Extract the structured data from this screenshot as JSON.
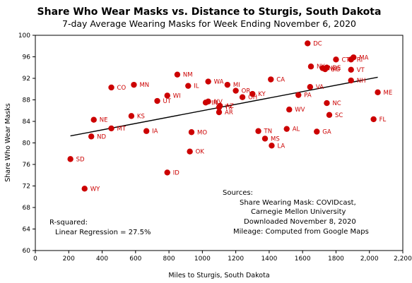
{
  "chart_data": {
    "type": "scatter",
    "title": "Share Who Wear Masks vs. Distance to Sturgis, South Dakota",
    "subtitle": "7-day Average Wearing Masks for Week Ending November 6, 2020",
    "xlabel": "Miles to Sturgis, South Dakota",
    "ylabel": "Share Who Wear Masks",
    "xlim": [
      0,
      2200
    ],
    "ylim": [
      60,
      100
    ],
    "x_ticks": [
      "0",
      "200",
      "400",
      "600",
      "800",
      "1000",
      "1200",
      "1400",
      "1600",
      "1800",
      "2,000",
      "2,200"
    ],
    "y_ticks": [
      "60",
      "64",
      "68",
      "72",
      "76",
      "80",
      "84",
      "88",
      "92",
      "96",
      "100"
    ],
    "grid": false,
    "point_color": "#cc0000",
    "trend_color": "#000000",
    "trendline": {
      "x": [
        210,
        2050
      ],
      "y": [
        81.3,
        92.2
      ]
    },
    "points": [
      {
        "label": "SD",
        "x": 210,
        "y": 77.0
      },
      {
        "label": "WY",
        "x": 295,
        "y": 71.5
      },
      {
        "label": "NE",
        "x": 350,
        "y": 84.3
      },
      {
        "label": "ND",
        "x": 335,
        "y": 81.2
      },
      {
        "label": "CO",
        "x": 455,
        "y": 90.3
      },
      {
        "label": "MT",
        "x": 455,
        "y": 82.7
      },
      {
        "label": "MN",
        "x": 590,
        "y": 90.8
      },
      {
        "label": "KS",
        "x": 575,
        "y": 85.0
      },
      {
        "label": "IA",
        "x": 665,
        "y": 82.2
      },
      {
        "label": "UT",
        "x": 730,
        "y": 87.8
      },
      {
        "label": "NM",
        "x": 850,
        "y": 92.7
      },
      {
        "label": "WI",
        "x": 790,
        "y": 88.8
      },
      {
        "label": "IL",
        "x": 915,
        "y": 90.6
      },
      {
        "label": "ID",
        "x": 790,
        "y": 74.5
      },
      {
        "label": "MO",
        "x": 935,
        "y": 82.0
      },
      {
        "label": "OK",
        "x": 925,
        "y": 78.4
      },
      {
        "label": "WA",
        "x": 1035,
        "y": 91.4
      },
      {
        "label": "IN",
        "x": 1020,
        "y": 87.5
      },
      {
        "label": "NV",
        "x": 1035,
        "y": 87.7
      },
      {
        "label": "AZ",
        "x": 1105,
        "y": 86.9
      },
      {
        "label": "TX",
        "x": 1100,
        "y": 86.6
      },
      {
        "label": "AR",
        "x": 1100,
        "y": 85.7
      },
      {
        "label": "MI",
        "x": 1150,
        "y": 90.8
      },
      {
        "label": "OR",
        "x": 1200,
        "y": 89.7
      },
      {
        "label": "OH",
        "x": 1240,
        "y": 88.5
      },
      {
        "label": "KY",
        "x": 1300,
        "y": 89.1
      },
      {
        "label": "CA",
        "x": 1410,
        "y": 91.8
      },
      {
        "label": "TN",
        "x": 1335,
        "y": 82.2
      },
      {
        "label": "MS",
        "x": 1375,
        "y": 80.8
      },
      {
        "label": "LA",
        "x": 1415,
        "y": 79.5
      },
      {
        "label": "AL",
        "x": 1505,
        "y": 82.6
      },
      {
        "label": "WV",
        "x": 1520,
        "y": 86.2
      },
      {
        "label": "PA",
        "x": 1575,
        "y": 88.9
      },
      {
        "label": "VA",
        "x": 1645,
        "y": 90.4
      },
      {
        "label": "GA",
        "x": 1685,
        "y": 82.1
      },
      {
        "label": "DC",
        "x": 1630,
        "y": 98.5
      },
      {
        "label": "NY",
        "x": 1650,
        "y": 94.2
      },
      {
        "label": "NJ",
        "x": 1720,
        "y": 93.9
      },
      {
        "label": "DE",
        "x": 1745,
        "y": 94.0
      },
      {
        "label": "MD",
        "x": 1735,
        "y": 93.7
      },
      {
        "label": "NC",
        "x": 1745,
        "y": 87.4
      },
      {
        "label": "SC",
        "x": 1760,
        "y": 85.2
      },
      {
        "label": "CT",
        "x": 1800,
        "y": 95.5
      },
      {
        "label": "MA",
        "x": 1905,
        "y": 95.9
      },
      {
        "label": "RI",
        "x": 1890,
        "y": 95.5
      },
      {
        "label": "VT",
        "x": 1890,
        "y": 93.6
      },
      {
        "label": "NH",
        "x": 1890,
        "y": 91.6
      },
      {
        "label": "ME",
        "x": 2050,
        "y": 89.4
      },
      {
        "label": "FL",
        "x": 2025,
        "y": 84.4
      }
    ],
    "annotations": {
      "r_squared_label": "R-squared:",
      "r_squared_value": "Linear Regression = 27.5%",
      "sources_title": "Sources:",
      "source_line1": "Share Wearing Mask: COVIDcast,",
      "source_line2": "Carnegie Mellon University",
      "source_line3": "Downloaded November 8, 2020",
      "source_line4": "Mileage:  Computed from Google Maps"
    }
  }
}
